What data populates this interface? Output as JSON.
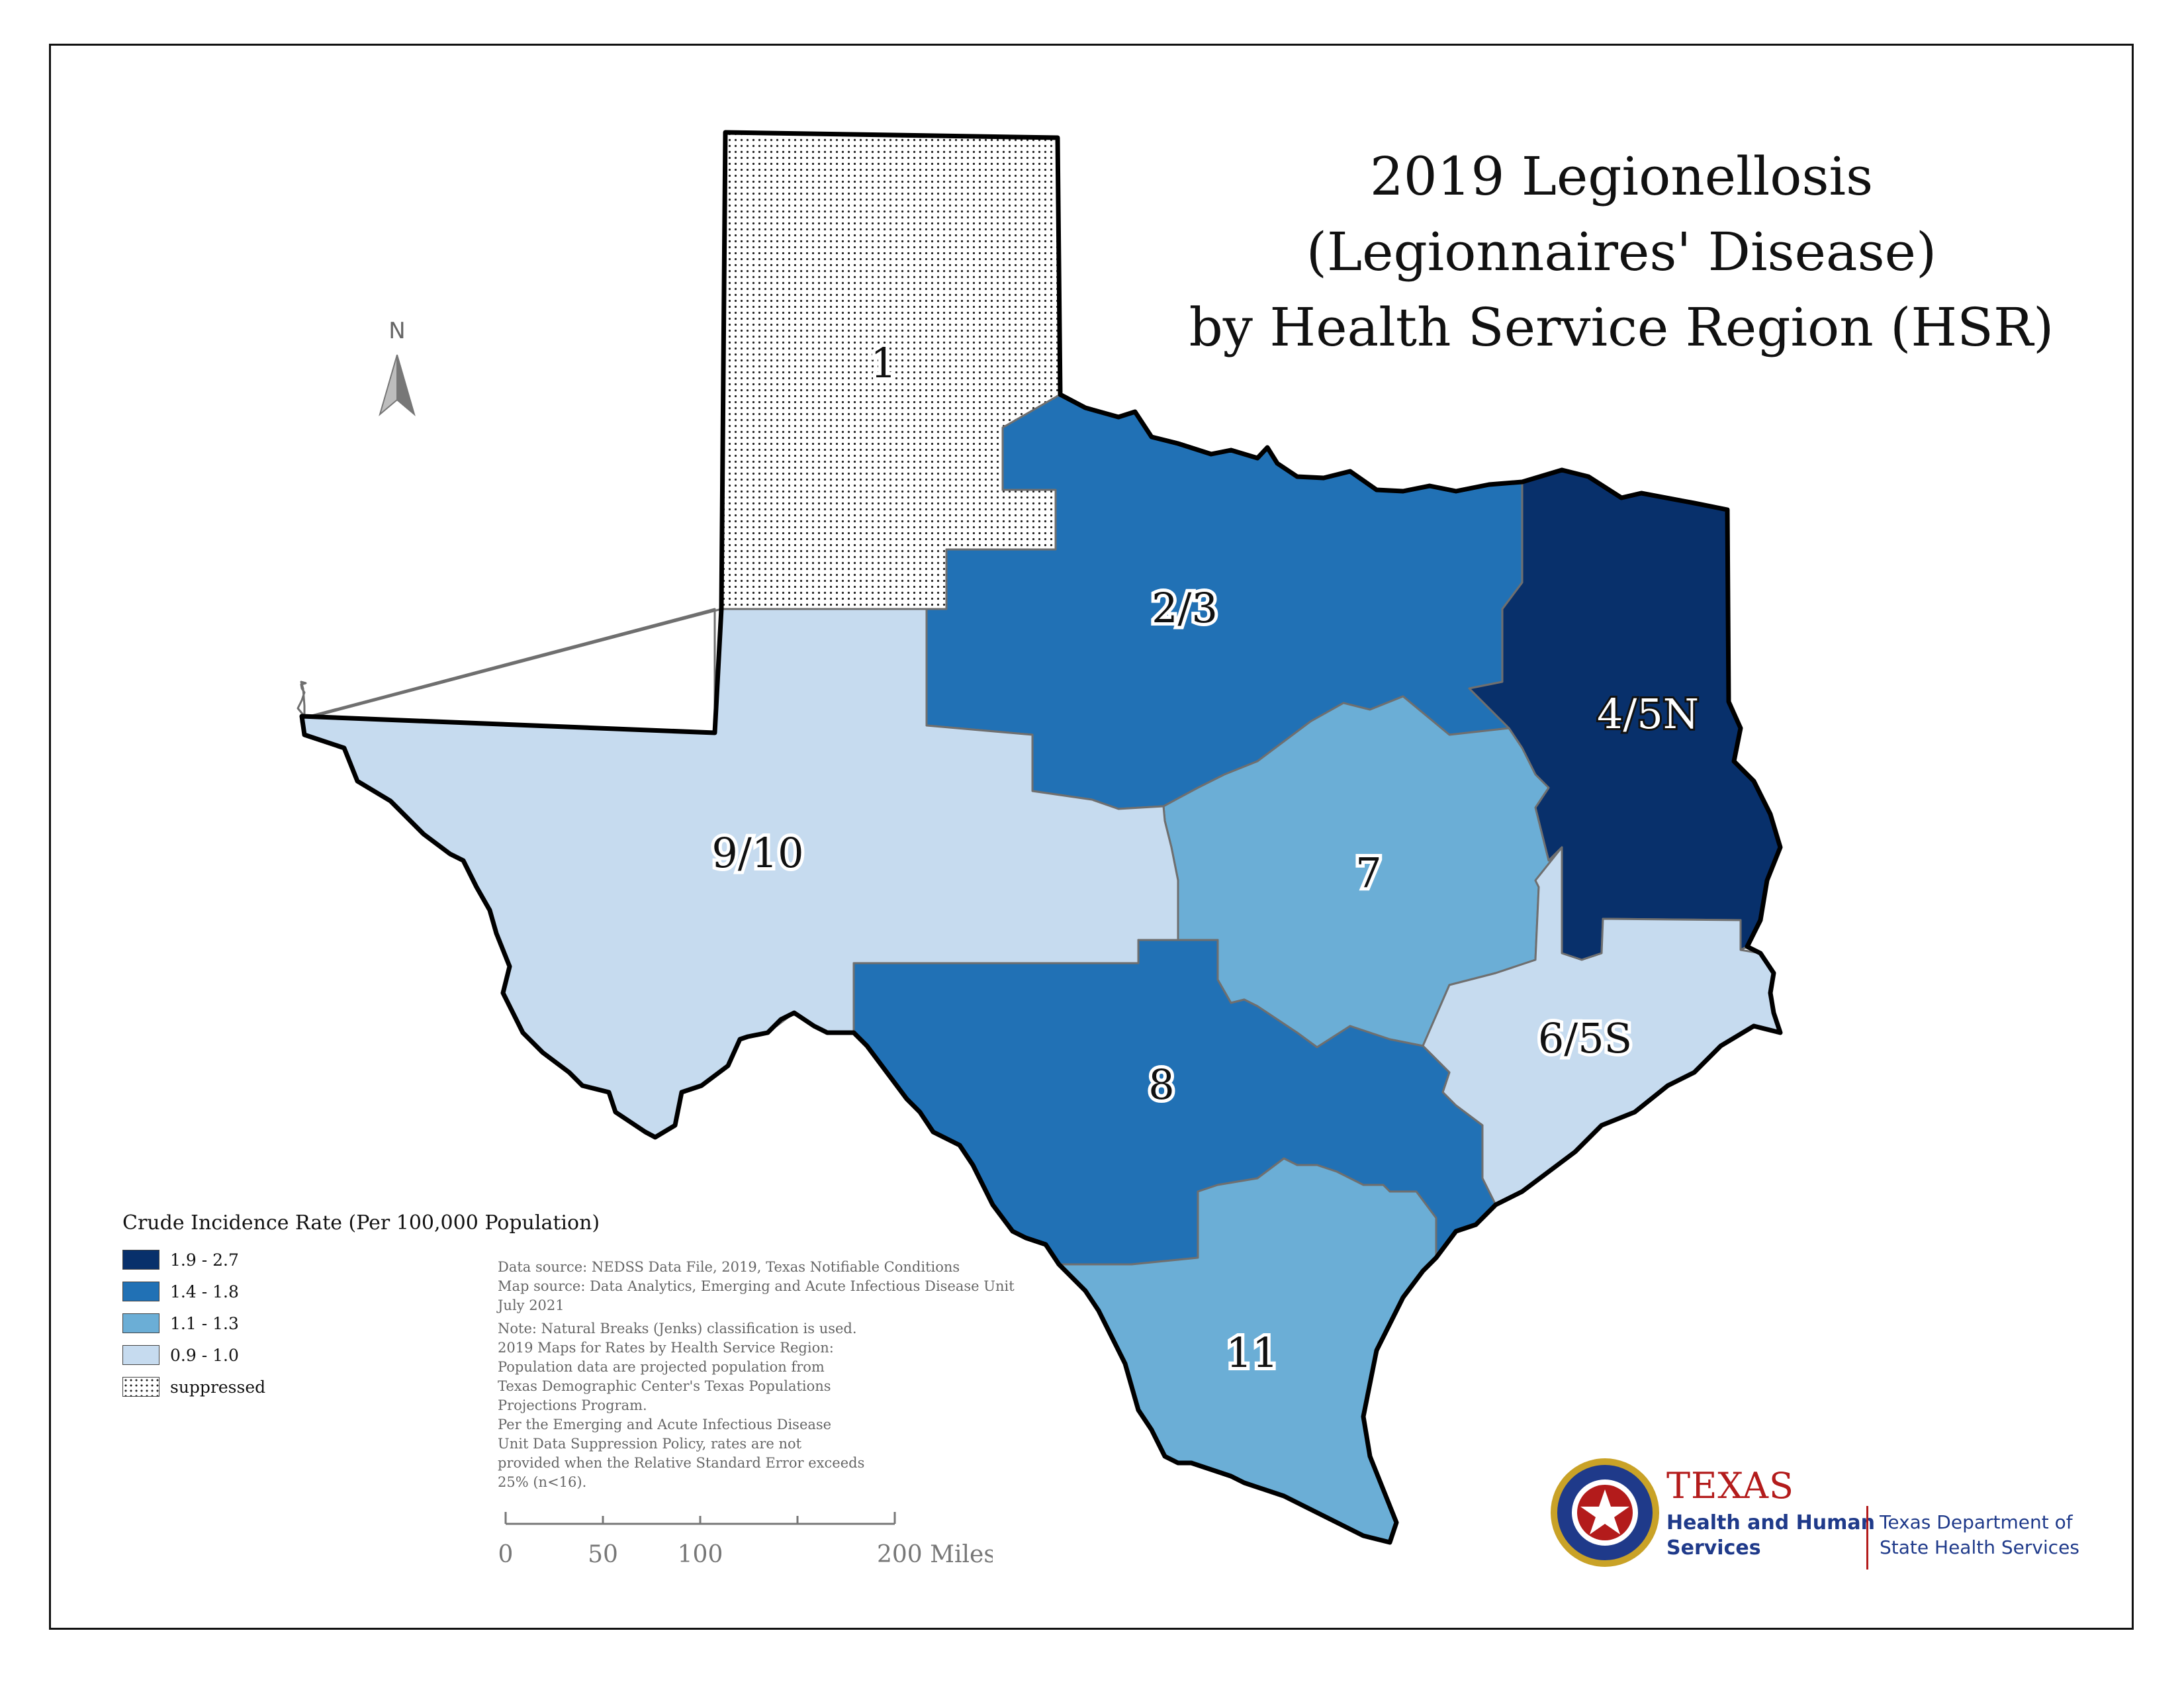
{
  "title": {
    "line1": "2019 Legionellosis",
    "line2": "(Legionnaires' Disease)",
    "line3": "by Health Service Region (HSR)"
  },
  "north_arrow": {
    "letter": "N",
    "icon": "north-arrow-icon"
  },
  "regions": [
    {
      "id": "1",
      "label": "1",
      "rate_class": "suppressed"
    },
    {
      "id": "2/3",
      "label": "2/3",
      "rate_class": "1.4 - 1.8",
      "color": "#2171b5"
    },
    {
      "id": "4/5N",
      "label": "4/5N",
      "rate_class": "1.9 - 2.7",
      "color": "#08306b"
    },
    {
      "id": "7",
      "label": "7",
      "rate_class": "1.1 - 1.3",
      "color": "#6baed6"
    },
    {
      "id": "9/10",
      "label": "9/10",
      "rate_class": "0.9 - 1.0",
      "color": "#c6dbef"
    },
    {
      "id": "6/5S",
      "label": "6/5S",
      "rate_class": "0.9 - 1.0",
      "color": "#c6dbef"
    },
    {
      "id": "8",
      "label": "8",
      "rate_class": "1.4 - 1.8",
      "color": "#2171b5"
    },
    {
      "id": "11",
      "label": "11",
      "rate_class": "1.1 - 1.3",
      "color": "#6baed6"
    }
  ],
  "legend": {
    "title": "Crude Incidence Rate (Per 100,000 Population)",
    "items": [
      {
        "label": "1.9 - 2.7",
        "color": "#08306b"
      },
      {
        "label": "1.4 - 1.8",
        "color": "#2171b5"
      },
      {
        "label": "1.1 - 1.3",
        "color": "#6baed6"
      },
      {
        "label": "0.9 - 1.0",
        "color": "#c6dbef"
      },
      {
        "label": "suppressed",
        "pattern": "dotted"
      }
    ]
  },
  "notes": {
    "source1": "Data source: NEDSS Data File, 2019, Texas Notifiable Conditions",
    "source2": "Map source: Data Analytics, Emerging and Acute Infectious Disease Unit",
    "date": "July 2021",
    "note1": "Note:  Natural Breaks (Jenks) classification is used.",
    "note2": "2019 Maps for Rates by Health Service Region:",
    "note3": "Population data are projected population from",
    "note4": "Texas Demographic Center's Texas Populations",
    "note5": "Projections Program.",
    "note6": "Per the Emerging and Acute Infectious Disease",
    "note7": "Unit Data Suppression Policy, rates are not",
    "note8": "provided when the Relative Standard Error exceeds",
    "note9": "25% (n<16)."
  },
  "scale_bar": {
    "labels": [
      "0",
      "50",
      "100",
      "200 Miles"
    ],
    "values": [
      0,
      50,
      100,
      200
    ]
  },
  "logo": {
    "texas": "TEXAS",
    "hhs_line1": "Health and Human",
    "hhs_line2": "Services",
    "dshs_line1": "Texas Department of",
    "dshs_line2": "State Health Services",
    "colors": {
      "red": "#b31b1b",
      "blue": "#1f3a8a",
      "gold": "#c9a227"
    }
  }
}
